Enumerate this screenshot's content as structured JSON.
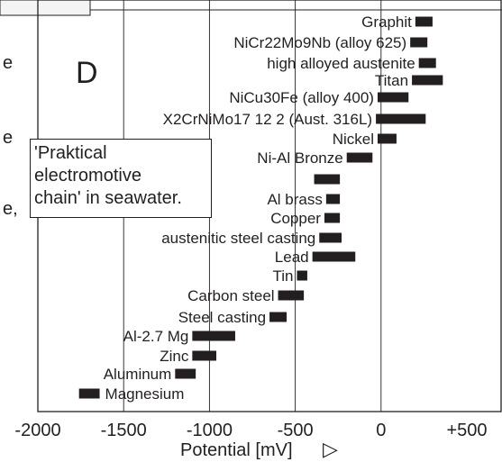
{
  "cropped_text": {
    "fragment_1": "e",
    "fragment_2": "e",
    "fragment_3": "e,"
  },
  "chart_data": {
    "type": "bar",
    "orientation": "horizontal",
    "panel_label": "D",
    "xlabel": "Potential [mV]",
    "xlabel_arrow": "▷",
    "xlim": [
      -2000,
      500
    ],
    "xticks": [
      -2000,
      -1500,
      -1000,
      -500,
      0,
      500
    ],
    "xtick_labels": [
      "-2000",
      "-1500",
      "-1000",
      "-500",
      "0",
      "+500"
    ],
    "grid": "vertical lines at -1500, -1000, -500 and 0",
    "bar_color": "#231f20",
    "annotation": [
      "'Praktical",
      "electromotive",
      "chain' in seawater."
    ],
    "materials": [
      {
        "label": "Graphit",
        "min": 200,
        "max": 300,
        "label_side": "left"
      },
      {
        "label": "NiCr22Mo9Nb (alloy 625)",
        "min": 170,
        "max": 270,
        "label_side": "left"
      },
      {
        "label": "high alloyed austenite",
        "min": 220,
        "max": 320,
        "label_side": "left"
      },
      {
        "label": "Titan",
        "min": 180,
        "max": 360,
        "label_side": "left"
      },
      {
        "label": "NiCu30Fe (alloy 400)",
        "min": -20,
        "max": 160,
        "label_side": "left"
      },
      {
        "label": "X2CrNiMo17 12 2 (Aust. 316L)",
        "min": -30,
        "max": 260,
        "label_side": "left"
      },
      {
        "label": "Nickel",
        "min": -20,
        "max": 90,
        "label_side": "left"
      },
      {
        "label": "Ni-Al Bronze",
        "min": -200,
        "max": -50,
        "label_side": "left"
      },
      {
        "label": "",
        "min": -390,
        "max": -240,
        "label_side": "left"
      },
      {
        "label": "Al brass",
        "min": -320,
        "max": -240,
        "label_side": "left"
      },
      {
        "label": "Copper",
        "min": -330,
        "max": -240,
        "label_side": "left"
      },
      {
        "label": "austenitic steel casting",
        "min": -360,
        "max": -230,
        "label_side": "left"
      },
      {
        "label": "Lead",
        "min": -400,
        "max": -150,
        "label_side": "left"
      },
      {
        "label": "Tin",
        "min": -490,
        "max": -430,
        "label_side": "left"
      },
      {
        "label": "Carbon steel",
        "min": -600,
        "max": -450,
        "label_side": "left"
      },
      {
        "label": "Steel casting",
        "min": -650,
        "max": -550,
        "label_side": "left"
      },
      {
        "label": "Al-2.7 Mg",
        "min": -1100,
        "max": -850,
        "label_side": "left"
      },
      {
        "label": "Zinc",
        "min": -1100,
        "max": -960,
        "label_side": "left"
      },
      {
        "label": "Aluminum",
        "min": -1200,
        "max": -1080,
        "label_side": "left"
      },
      {
        "label": "Magnesium",
        "min": -1760,
        "max": -1640,
        "label_side": "right"
      }
    ]
  }
}
